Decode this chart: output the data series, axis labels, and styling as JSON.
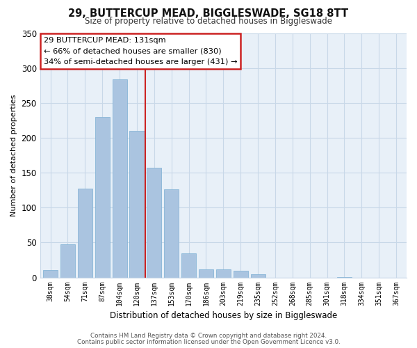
{
  "title": "29, BUTTERCUP MEAD, BIGGLESWADE, SG18 8TT",
  "subtitle": "Size of property relative to detached houses in Biggleswade",
  "xlabel": "Distribution of detached houses by size in Biggleswade",
  "ylabel": "Number of detached properties",
  "bar_labels": [
    "38sqm",
    "54sqm",
    "71sqm",
    "87sqm",
    "104sqm",
    "120sqm",
    "137sqm",
    "153sqm",
    "170sqm",
    "186sqm",
    "203sqm",
    "219sqm",
    "235sqm",
    "252sqm",
    "268sqm",
    "285sqm",
    "301sqm",
    "318sqm",
    "334sqm",
    "351sqm",
    "367sqm"
  ],
  "bar_values": [
    11,
    47,
    127,
    230,
    284,
    210,
    157,
    126,
    34,
    12,
    12,
    10,
    5,
    0,
    0,
    0,
    0,
    1,
    0,
    0,
    0
  ],
  "bar_color": "#aac4e0",
  "bar_edge_color": "#7bafd4",
  "red_line_x": 5.5,
  "red_line_color": "#cc2222",
  "ylim": [
    0,
    350
  ],
  "yticks": [
    0,
    50,
    100,
    150,
    200,
    250,
    300,
    350
  ],
  "annotation_title": "29 BUTTERCUP MEAD: 131sqm",
  "annotation_line1": "← 66% of detached houses are smaller (830)",
  "annotation_line2": "34% of semi-detached houses are larger (431) →",
  "annotation_box_color": "#ffffff",
  "annotation_box_edgecolor": "#cc2222",
  "footer_line1": "Contains HM Land Registry data © Crown copyright and database right 2024.",
  "footer_line2": "Contains public sector information licensed under the Open Government Licence v3.0.",
  "background_color": "#ffffff",
  "grid_color": "#c8d8e8"
}
